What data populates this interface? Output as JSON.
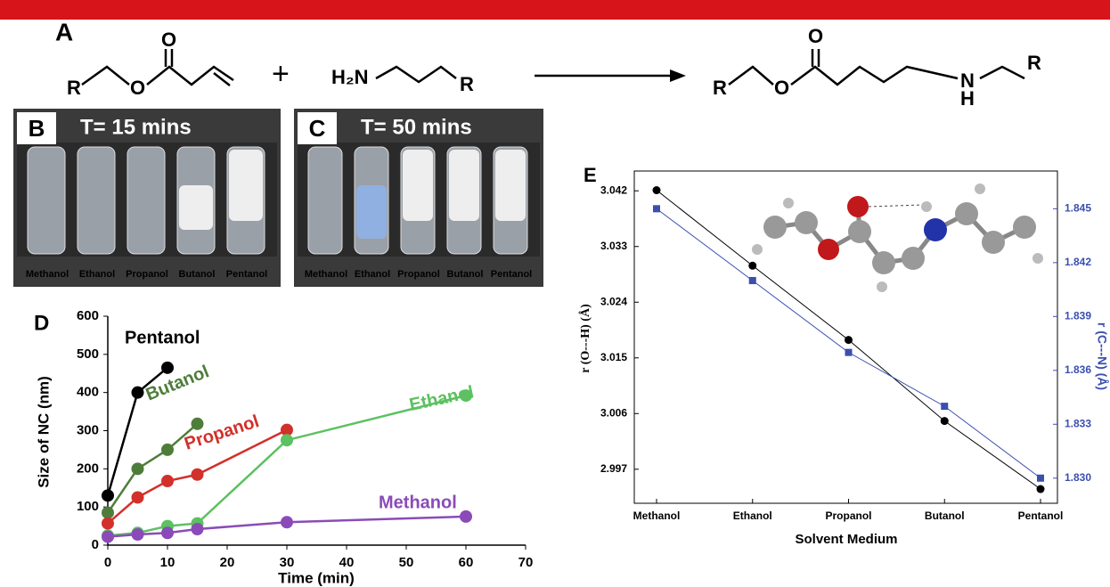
{
  "scheme": {
    "label": "A",
    "texts": [
      "R",
      "O",
      "O",
      "+",
      "H₂N",
      "R",
      "R",
      "O",
      "O",
      "N",
      "H",
      "R"
    ]
  },
  "photos": [
    {
      "label": "B",
      "time": "T= 15 mins",
      "vials": [
        "Methanol",
        "Ethanol",
        "Propanol",
        "Butanol",
        "Pentanol"
      ]
    },
    {
      "label": "C",
      "time": "T= 50 mins",
      "vials": [
        "Methanol",
        "Ethanol",
        "Propanol",
        "Butanol",
        "Pentanol"
      ]
    }
  ],
  "chart_data": [
    {
      "type": "line",
      "panel": "D",
      "x_label": "Time (min)",
      "y_label": "Size of NC (nm)",
      "xlim": [
        0,
        70
      ],
      "xticks": [
        0,
        10,
        20,
        30,
        40,
        50,
        60,
        70
      ],
      "ylim": [
        0,
        600
      ],
      "yticks": [
        0,
        100,
        200,
        300,
        400,
        500,
        600
      ],
      "series": [
        {
          "name": "Pentanol",
          "color": "#000000",
          "x": [
            0,
            5,
            10
          ],
          "values": [
            130,
            400,
            465
          ]
        },
        {
          "name": "Butanol",
          "color": "#4e7d3a",
          "x": [
            0,
            5,
            10,
            15
          ],
          "values": [
            85,
            200,
            250,
            318
          ]
        },
        {
          "name": "Propanol",
          "color": "#d2302a",
          "x": [
            0,
            5,
            10,
            15,
            30
          ],
          "values": [
            57,
            125,
            168,
            185,
            302
          ]
        },
        {
          "name": "Ethanol",
          "color": "#5cc160",
          "x": [
            0,
            5,
            10,
            15,
            30,
            60
          ],
          "values": [
            25,
            32,
            50,
            57,
            275,
            392
          ]
        },
        {
          "name": "Methanol",
          "color": "#8a4bb8",
          "x": [
            0,
            5,
            10,
            15,
            30,
            60
          ],
          "values": [
            22,
            28,
            32,
            42,
            60,
            75
          ]
        }
      ]
    },
    {
      "type": "dual-line",
      "panel": "E",
      "x_label": "Solvent Medium",
      "y_label": "r (O---H) (Å)",
      "y2_label": "r (C---N) (Å)",
      "categories": [
        "Methanol",
        "Ethanol",
        "Propanol",
        "Butanol",
        "Pentanol"
      ],
      "ylim": [
        2.9915,
        3.0452
      ],
      "yticks": [
        2.997,
        3.006,
        3.015,
        3.024,
        3.033,
        3.042
      ],
      "y2lim": [
        1.8286,
        1.8471
      ],
      "y2ticks": [
        {
          "value": 1.83,
          "label": "1.830"
        },
        1.833,
        1.836,
        1.839,
        1.842,
        1.845
      ],
      "series": [
        {
          "color": "#000000",
          "values": [
            3.0421,
            3.0299,
            3.0179,
            3.0048,
            2.9938
          ]
        },
        {
          "color": "#3a4fb0",
          "axis": "y2",
          "values": [
            1.845,
            1.841,
            1.837,
            1.834,
            1.83
          ]
        }
      ]
    }
  ]
}
